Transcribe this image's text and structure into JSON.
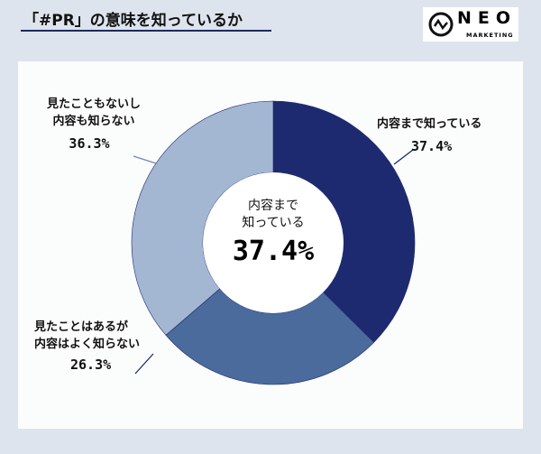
{
  "header": {
    "title": "「#PR」の意味を知っているか",
    "logo_main": "NEO",
    "logo_sub": "MARKETING"
  },
  "chart_data": {
    "type": "pie",
    "donut": true,
    "title": "「#PR」の意味を知っているか",
    "slices": [
      {
        "label_lines": [
          "内容まで知っている"
        ],
        "label": "内容まで知っている",
        "value": 37.4,
        "value_text": "37.4%",
        "color": "#1e2a6f"
      },
      {
        "label_lines": [
          "見たことはあるが",
          "内容はよく知らない"
        ],
        "label": "見たことはあるが内容はよく知らない",
        "value": 26.3,
        "value_text": "26.3%",
        "color": "#4a6b9b"
      },
      {
        "label_lines": [
          "見たこともないし",
          "内容も知らない"
        ],
        "label": "見たこともないし内容も知らない",
        "value": 36.3,
        "value_text": "36.3%",
        "color": "#a3b6d2"
      }
    ],
    "center": {
      "lines": [
        "内容まで",
        "知っている"
      ],
      "value_text": "37.4%"
    }
  }
}
